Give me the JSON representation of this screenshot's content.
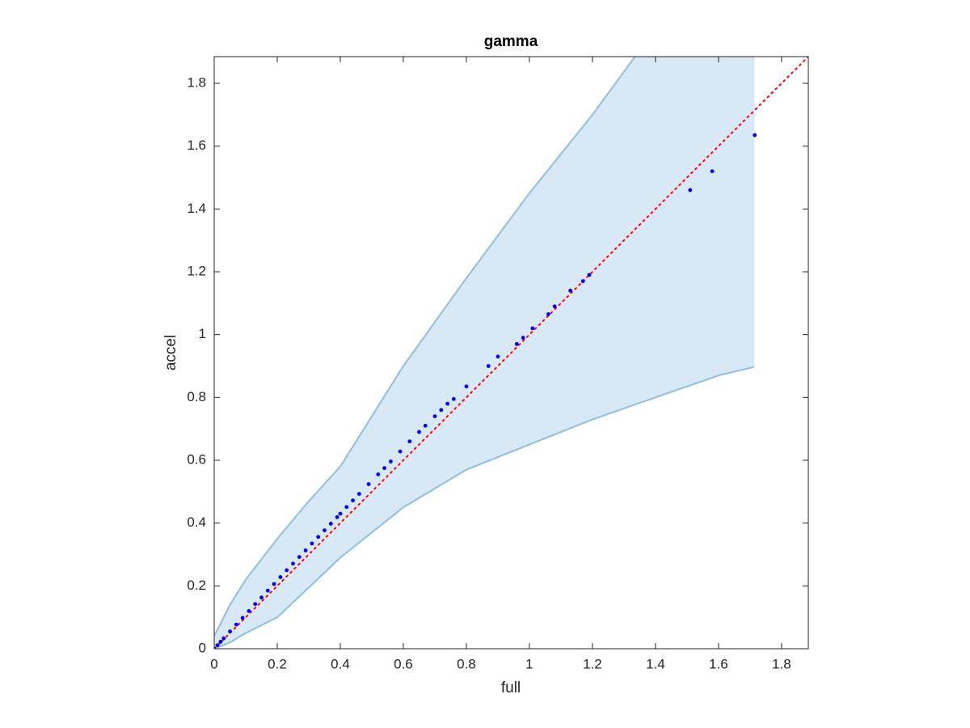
{
  "chart_data": {
    "type": "scatter",
    "title": "gamma",
    "x_label": "full",
    "y_label": "accel",
    "xlim": [
      0,
      1.885
    ],
    "ylim": [
      0,
      1.885
    ],
    "xticks": [
      0,
      0.2,
      0.4,
      0.6,
      0.8,
      1,
      1.2,
      1.4,
      1.6,
      1.8
    ],
    "yticks": [
      0,
      0.2,
      0.4,
      0.6,
      0.8,
      1,
      1.2,
      1.4,
      1.6,
      1.8
    ],
    "identity_line": true,
    "identity_color": "#ff0000",
    "band": {
      "color": "#d8e8f4",
      "edge_color": "#8dbfe2",
      "upper": {
        "x": [
          0,
          0.05,
          0.1,
          0.2,
          0.3,
          0.4,
          0.6,
          0.8,
          1.0,
          1.2,
          1.335
        ],
        "values": [
          0.04,
          0.14,
          0.22,
          0.35,
          0.47,
          0.58,
          0.9,
          1.18,
          1.45,
          1.7,
          1.885
        ]
      },
      "lower": {
        "x": [
          0,
          0.05,
          0.1,
          0.2,
          0.4,
          0.6,
          0.8,
          1.0,
          1.2,
          1.4,
          1.6,
          1.713
        ],
        "values": [
          0,
          0.02,
          0.05,
          0.1,
          0.29,
          0.45,
          0.57,
          0.65,
          0.73,
          0.8,
          0.87,
          0.897
        ]
      }
    },
    "points": {
      "color": "#0000ff",
      "x": [
        0,
        0.01,
        0.02,
        0.03,
        0.05,
        0.07,
        0.09,
        0.11,
        0.13,
        0.15,
        0.17,
        0.19,
        0.21,
        0.23,
        0.25,
        0.27,
        0.29,
        0.31,
        0.33,
        0.35,
        0.37,
        0.39,
        0.4,
        0.42,
        0.44,
        0.46,
        0.49,
        0.52,
        0.54,
        0.56,
        0.59,
        0.62,
        0.65,
        0.67,
        0.7,
        0.72,
        0.74,
        0.76,
        0.8,
        0.87,
        0.9,
        0.96,
        0.98,
        1.01,
        1.06,
        1.08,
        1.13,
        1.17,
        1.19,
        1.51,
        1.58,
        1.715
      ],
      "values": [
        0,
        0.011,
        0.022,
        0.033,
        0.055,
        0.077,
        0.098,
        0.12,
        0.142,
        0.163,
        0.185,
        0.206,
        0.228,
        0.25,
        0.271,
        0.292,
        0.313,
        0.335,
        0.356,
        0.377,
        0.398,
        0.419,
        0.43,
        0.451,
        0.472,
        0.493,
        0.524,
        0.555,
        0.575,
        0.596,
        0.628,
        0.66,
        0.69,
        0.71,
        0.74,
        0.76,
        0.78,
        0.795,
        0.835,
        0.9,
        0.93,
        0.97,
        0.99,
        1.02,
        1.065,
        1.09,
        1.14,
        1.17,
        1.19,
        1.46,
        1.52,
        1.635
      ]
    }
  }
}
